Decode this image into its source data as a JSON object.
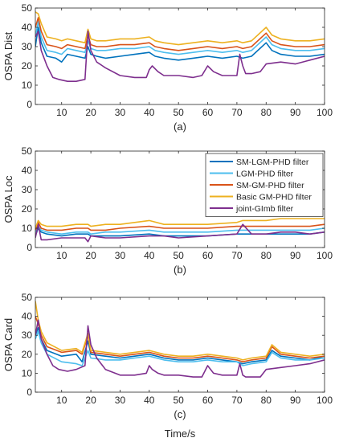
{
  "figure": {
    "xlabel": "Time/s"
  },
  "series_styles": [
    {
      "name": "SM-LGM-PHD filter",
      "color": "#0072BD"
    },
    {
      "name": "LGM-PHD filter",
      "color": "#4DBEEE"
    },
    {
      "name": "SM-GM-PHD filter",
      "color": "#D95319"
    },
    {
      "name": "Basic GM-PHD filter",
      "color": "#EDB120"
    },
    {
      "name": "joint-GImb filter",
      "color": "#7E2F8E"
    }
  ],
  "chart_data": [
    {
      "type": "line",
      "ylabel": "OSPA Dist",
      "caption": "(a)",
      "xlim": [
        1,
        100
      ],
      "ylim": [
        0,
        50
      ],
      "xticks": [
        10,
        20,
        30,
        40,
        50,
        60,
        70,
        80,
        90,
        100
      ],
      "yticks": [
        0,
        10,
        20,
        30,
        40,
        50
      ],
      "grid": false,
      "series": [
        {
          "name": "SM-LGM-PHD filter",
          "x": [
            1,
            2,
            3,
            5,
            8,
            10,
            12,
            15,
            18,
            19,
            20,
            22,
            25,
            30,
            35,
            40,
            42,
            45,
            50,
            55,
            60,
            65,
            70,
            72,
            75,
            80,
            82,
            85,
            90,
            95,
            100
          ],
          "y": [
            30,
            40,
            32,
            25,
            24,
            22,
            26,
            25,
            24,
            30,
            26,
            25,
            24,
            25,
            26,
            27,
            25,
            24,
            23,
            24,
            25,
            24,
            25,
            24,
            25,
            32,
            28,
            26,
            25,
            25,
            26
          ]
        },
        {
          "name": "LGM-PHD filter",
          "x": [
            1,
            2,
            3,
            5,
            8,
            10,
            12,
            15,
            18,
            19,
            20,
            22,
            25,
            30,
            35,
            40,
            42,
            45,
            50,
            55,
            60,
            65,
            70,
            72,
            75,
            80,
            82,
            85,
            90,
            95,
            100
          ],
          "y": [
            35,
            43,
            35,
            28,
            27,
            26,
            29,
            28,
            27,
            33,
            29,
            28,
            28,
            29,
            29,
            30,
            28,
            27,
            26,
            27,
            28,
            27,
            28,
            27,
            28,
            35,
            31,
            29,
            28,
            28,
            29
          ]
        },
        {
          "name": "SM-GM-PHD filter",
          "x": [
            1,
            2,
            3,
            5,
            8,
            10,
            12,
            15,
            18,
            19,
            20,
            22,
            25,
            30,
            35,
            40,
            42,
            45,
            50,
            55,
            60,
            65,
            70,
            72,
            75,
            80,
            82,
            85,
            90,
            95,
            100
          ],
          "y": [
            40,
            45,
            38,
            31,
            30,
            29,
            31,
            30,
            29,
            36,
            31,
            30,
            30,
            31,
            31,
            32,
            30,
            29,
            28,
            29,
            30,
            29,
            30,
            29,
            30,
            37,
            33,
            31,
            30,
            30,
            31
          ]
        },
        {
          "name": "Basic GM-PHD filter",
          "x": [
            1,
            2,
            3,
            5,
            8,
            10,
            12,
            15,
            18,
            19,
            20,
            22,
            25,
            30,
            35,
            40,
            42,
            45,
            50,
            55,
            60,
            65,
            70,
            72,
            75,
            80,
            82,
            85,
            90,
            95,
            100
          ],
          "y": [
            48,
            47,
            42,
            35,
            34,
            33,
            34,
            33,
            32,
            39,
            34,
            33,
            33,
            34,
            34,
            35,
            33,
            32,
            31,
            32,
            33,
            32,
            33,
            32,
            33,
            40,
            36,
            34,
            33,
            33,
            34
          ]
        },
        {
          "name": "joint-GImb filter",
          "x": [
            1,
            2,
            3,
            5,
            7,
            9,
            12,
            15,
            18,
            19,
            20,
            22,
            25,
            30,
            35,
            39,
            40,
            41,
            43,
            45,
            50,
            55,
            58,
            60,
            62,
            65,
            70,
            71,
            72,
            73,
            75,
            78,
            80,
            85,
            90,
            95,
            100
          ],
          "y": [
            35,
            38,
            28,
            20,
            14,
            13,
            12,
            12,
            13,
            38,
            28,
            22,
            19,
            15,
            14,
            14,
            18,
            20,
            17,
            15,
            15,
            14,
            15,
            20,
            17,
            15,
            15,
            26,
            20,
            16,
            16,
            17,
            21,
            22,
            21,
            23,
            25
          ]
        }
      ]
    },
    {
      "type": "line",
      "ylabel": "OSPA Loc",
      "caption": "(b)",
      "xlim": [
        1,
        100
      ],
      "ylim": [
        0,
        50
      ],
      "xticks": [
        10,
        20,
        30,
        40,
        50,
        60,
        70,
        80,
        90,
        100
      ],
      "yticks": [
        0,
        10,
        20,
        30,
        40,
        50
      ],
      "grid": false,
      "legend": {
        "placement": "top-right",
        "entries": [
          "SM-LGM-PHD filter",
          "LGM-PHD filter",
          "SM-GM-PHD filter",
          "Basic GM-PHD filter",
          "joint-GImb filter"
        ]
      },
      "series": [
        {
          "name": "SM-LGM-PHD filter",
          "x": [
            1,
            2,
            3,
            5,
            10,
            15,
            19,
            20,
            25,
            30,
            40,
            45,
            50,
            60,
            70,
            72,
            80,
            85,
            90,
            95,
            100
          ],
          "y": [
            6,
            10,
            8,
            7,
            6,
            7,
            7,
            6,
            6,
            6,
            7,
            6,
            6,
            6,
            7,
            7,
            7,
            7,
            7,
            7,
            8
          ]
        },
        {
          "name": "LGM-PHD filter",
          "x": [
            1,
            2,
            3,
            5,
            10,
            15,
            19,
            20,
            25,
            30,
            40,
            45,
            50,
            60,
            70,
            72,
            80,
            85,
            90,
            95,
            100
          ],
          "y": [
            8,
            11,
            9,
            8,
            7,
            8,
            8,
            7,
            8,
            8,
            9,
            8,
            8,
            8,
            9,
            9,
            9,
            9,
            9,
            9,
            10
          ]
        },
        {
          "name": "SM-GM-PHD filter",
          "x": [
            1,
            2,
            3,
            5,
            10,
            15,
            19,
            20,
            25,
            30,
            40,
            45,
            50,
            60,
            70,
            72,
            80,
            85,
            90,
            95,
            100
          ],
          "y": [
            9,
            13,
            10,
            9,
            9,
            10,
            10,
            9,
            9,
            10,
            11,
            10,
            10,
            10,
            11,
            11,
            11,
            11,
            11,
            11,
            12
          ]
        },
        {
          "name": "Basic GM-PHD filter",
          "x": [
            1,
            2,
            3,
            5,
            10,
            15,
            19,
            20,
            25,
            30,
            40,
            45,
            50,
            60,
            70,
            72,
            80,
            85,
            90,
            95,
            100
          ],
          "y": [
            10,
            14,
            12,
            11,
            11,
            12,
            12,
            11,
            12,
            12,
            14,
            12,
            12,
            12,
            13,
            14,
            14,
            15,
            15,
            15,
            15
          ]
        },
        {
          "name": "joint-GImb filter",
          "x": [
            1,
            2,
            3,
            5,
            10,
            15,
            18,
            19,
            20,
            25,
            30,
            40,
            45,
            50,
            60,
            70,
            72,
            75,
            80,
            85,
            90,
            95,
            100
          ],
          "y": [
            5,
            12,
            4,
            4,
            5,
            5,
            5,
            3,
            6,
            5,
            5,
            6,
            6,
            5,
            6,
            7,
            12,
            7,
            7,
            8,
            8,
            7,
            8
          ]
        }
      ]
    },
    {
      "type": "line",
      "ylabel": "OSPA Card",
      "caption": "(c)",
      "xlim": [
        1,
        100
      ],
      "ylim": [
        0,
        50
      ],
      "xticks": [
        10,
        20,
        30,
        40,
        50,
        60,
        70,
        80,
        90,
        100
      ],
      "yticks": [
        0,
        10,
        20,
        30,
        40,
        50
      ],
      "grid": false,
      "series": [
        {
          "name": "SM-LGM-PHD filter",
          "x": [
            1,
            2,
            3,
            5,
            10,
            15,
            17,
            19,
            20,
            25,
            30,
            35,
            40,
            45,
            50,
            55,
            60,
            65,
            70,
            72,
            75,
            80,
            82,
            85,
            90,
            95,
            100
          ],
          "y": [
            30,
            34,
            28,
            22,
            19,
            20,
            16,
            27,
            20,
            19,
            18,
            19,
            20,
            18,
            17,
            17,
            18,
            17,
            16,
            15,
            16,
            17,
            22,
            19,
            18,
            17,
            19
          ]
        },
        {
          "name": "LGM-PHD filter",
          "x": [
            1,
            2,
            3,
            5,
            10,
            15,
            17,
            19,
            20,
            25,
            30,
            35,
            40,
            45,
            50,
            55,
            60,
            65,
            70,
            72,
            75,
            80,
            82,
            85,
            90,
            95,
            100
          ],
          "y": [
            28,
            32,
            26,
            20,
            16,
            15,
            14,
            22,
            18,
            17,
            17,
            18,
            19,
            17,
            16,
            16,
            17,
            16,
            16,
            14,
            15,
            16,
            21,
            18,
            17,
            17,
            18
          ]
        },
        {
          "name": "SM-GM-PHD filter",
          "x": [
            1,
            2,
            3,
            5,
            10,
            15,
            17,
            19,
            20,
            25,
            30,
            35,
            40,
            45,
            50,
            55,
            60,
            65,
            70,
            72,
            75,
            80,
            82,
            85,
            90,
            95,
            100
          ],
          "y": [
            40,
            36,
            30,
            24,
            21,
            22,
            20,
            30,
            21,
            20,
            19,
            20,
            21,
            19,
            18,
            18,
            19,
            18,
            17,
            16,
            17,
            18,
            24,
            20,
            19,
            18,
            19
          ]
        },
        {
          "name": "Basic GM-PHD filter",
          "x": [
            1,
            2,
            3,
            5,
            10,
            15,
            17,
            19,
            20,
            25,
            30,
            35,
            40,
            45,
            50,
            55,
            60,
            65,
            70,
            72,
            75,
            80,
            82,
            85,
            90,
            95,
            100
          ],
          "y": [
            48,
            38,
            32,
            26,
            22,
            23,
            21,
            31,
            22,
            21,
            20,
            21,
            22,
            20,
            19,
            19,
            20,
            19,
            18,
            17,
            18,
            19,
            25,
            21,
            20,
            19,
            20
          ]
        },
        {
          "name": "joint-GImb filter",
          "x": [
            1,
            2,
            3,
            5,
            7,
            9,
            12,
            15,
            18,
            19,
            20,
            22,
            25,
            30,
            35,
            39,
            40,
            41,
            43,
            45,
            50,
            55,
            58,
            60,
            62,
            65,
            70,
            71,
            72,
            73,
            75,
            78,
            80,
            85,
            90,
            95,
            100
          ],
          "y": [
            30,
            38,
            28,
            20,
            14,
            12,
            11,
            12,
            14,
            35,
            25,
            18,
            12,
            9,
            9,
            10,
            14,
            12,
            10,
            9,
            9,
            8,
            8,
            14,
            10,
            9,
            9,
            15,
            9,
            8,
            8,
            8,
            12,
            13,
            14,
            15,
            17
          ]
        }
      ]
    }
  ]
}
